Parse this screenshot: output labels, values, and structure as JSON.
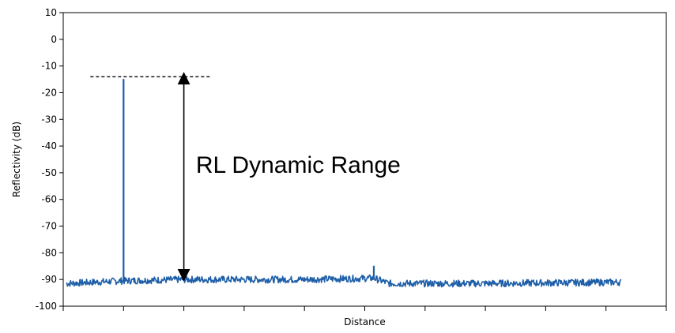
{
  "chart_data": {
    "type": "line",
    "title": "",
    "xlabel": "Distance",
    "ylabel": "Reflectivity (dB)",
    "ylim": [
      -100,
      10
    ],
    "yticks": [
      10,
      0,
      -10,
      -20,
      -30,
      -40,
      -50,
      -60,
      -70,
      -80,
      -90,
      -100
    ],
    "xlim": [
      0,
      10
    ],
    "xticks_labeled": false,
    "grid": false,
    "legend": "none",
    "series": [
      {
        "color": "#1f5fa8",
        "noise_floor": -91,
        "start_x": 0.05,
        "end_x": 9.25,
        "features": [
          {
            "x": 1.0,
            "y": -15,
            "kind": "reflection-peak"
          },
          {
            "x": 5.15,
            "y": -85,
            "kind": "small-reflection"
          }
        ],
        "floor_profile": [
          {
            "x": 0.05,
            "y": -91.5
          },
          {
            "x": 1.0,
            "y": -90.5
          },
          {
            "x": 2.0,
            "y": -90
          },
          {
            "x": 3.0,
            "y": -90
          },
          {
            "x": 4.0,
            "y": -90
          },
          {
            "x": 5.15,
            "y": -89.5
          },
          {
            "x": 5.4,
            "y": -91.5
          },
          {
            "x": 7.0,
            "y": -91.5
          },
          {
            "x": 9.25,
            "y": -91
          }
        ]
      }
    ],
    "annotations": [
      {
        "type": "dashed-line",
        "y": -14,
        "x_from": 0.45,
        "x_to": 2.45
      },
      {
        "type": "double-arrow",
        "x": 2.0,
        "y_from": -14,
        "y_to": -89
      },
      {
        "type": "text",
        "text": "RL Dynamic Range",
        "x": 2.2,
        "y": -50
      }
    ]
  }
}
